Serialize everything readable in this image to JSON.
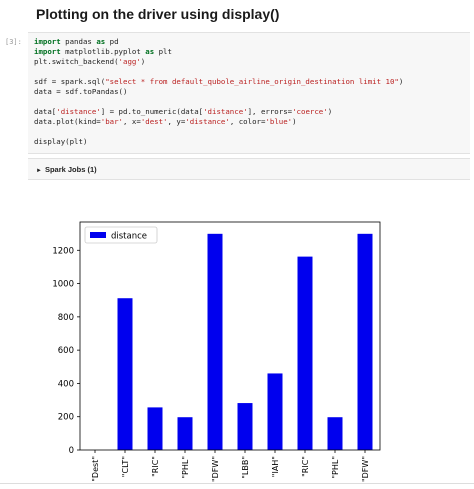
{
  "page": {
    "title": "Plotting on the driver using display()"
  },
  "cell": {
    "prompt": "[3]:",
    "code_lines": [
      [
        {
          "t": "import",
          "c": "kw"
        },
        {
          "t": " pandas "
        },
        {
          "t": "as",
          "c": "kw"
        },
        {
          "t": " pd"
        }
      ],
      [
        {
          "t": "import",
          "c": "kw"
        },
        {
          "t": " matplotlib.pyplot "
        },
        {
          "t": "as",
          "c": "kw"
        },
        {
          "t": " plt"
        }
      ],
      [
        {
          "t": "plt.switch_backend("
        },
        {
          "t": "'agg'",
          "c": "str"
        },
        {
          "t": ")"
        }
      ],
      [],
      [
        {
          "t": "sdf = spark.sql("
        },
        {
          "t": "\"select * from default_qubole_airline_origin_destination limit 10\"",
          "c": "str"
        },
        {
          "t": ")"
        }
      ],
      [
        {
          "t": "data = sdf.toPandas()"
        }
      ],
      [],
      [
        {
          "t": "data["
        },
        {
          "t": "'distance'",
          "c": "str"
        },
        {
          "t": "] = pd.to_numeric(data["
        },
        {
          "t": "'distance'",
          "c": "str"
        },
        {
          "t": "], errors="
        },
        {
          "t": "'coerce'",
          "c": "str"
        },
        {
          "t": ")"
        }
      ],
      [
        {
          "t": "data.plot(kind="
        },
        {
          "t": "'bar'",
          "c": "str"
        },
        {
          "t": ", x="
        },
        {
          "t": "'dest'",
          "c": "str"
        },
        {
          "t": ", y="
        },
        {
          "t": "'distance'",
          "c": "str"
        },
        {
          "t": ", color="
        },
        {
          "t": "'blue'",
          "c": "str"
        },
        {
          "t": ")"
        }
      ],
      [],
      [
        {
          "t": "display(plt)"
        }
      ]
    ],
    "spark_jobs_label": "Spark Jobs (1)"
  },
  "chart_data": {
    "type": "bar",
    "categories": [
      "\"Dest\"",
      "\"CLT\"",
      "\"RIC\"",
      "\"PHL\"",
      "\"DFW\"",
      "\"LBB\"",
      "\"IAH\"",
      "\"RIC\"",
      "\"PHL\"",
      "\"DFW\""
    ],
    "series": [
      {
        "name": "distance",
        "values": [
          0,
          912,
          256,
          197,
          1299,
          282,
          460,
          1162,
          197,
          1299
        ]
      }
    ],
    "ylim": [
      0,
      1370
    ],
    "yticks": [
      0,
      200,
      400,
      600,
      800,
      1000,
      1200
    ],
    "xlabel": "",
    "ylabel": "",
    "legend_position": "top-left",
    "grid": false,
    "colors": {
      "bar": "#0000ee",
      "axis": "#000000"
    }
  }
}
